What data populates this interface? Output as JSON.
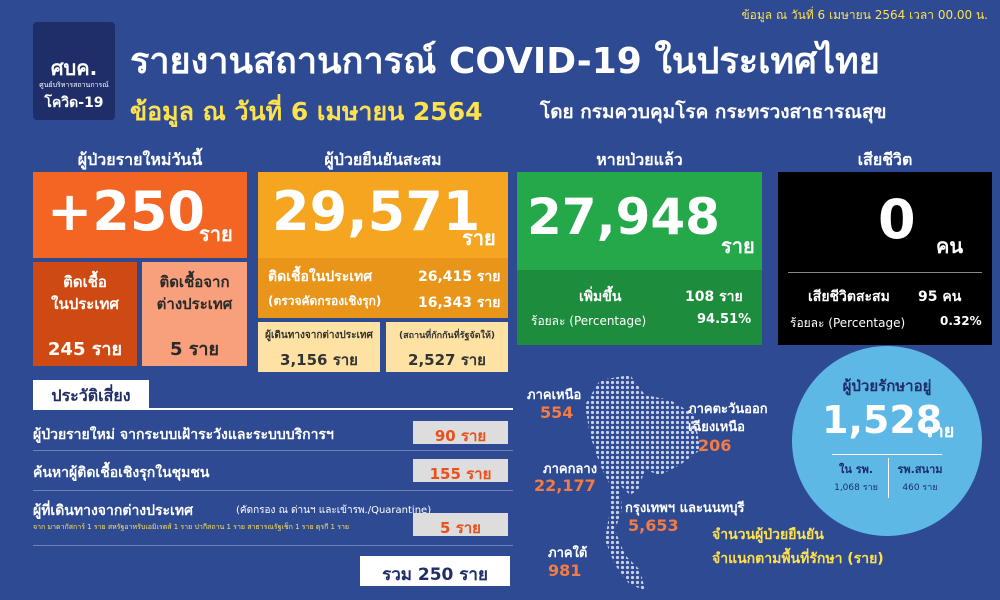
{
  "date_note": "ข้อมูล ณ วันที่ 6 เมษายน 2564 เวลา 00.00 น.",
  "logo": {
    "abbr": "ศบค.",
    "line1": "ศูนย์บริหารสถานการณ์",
    "line2": "โควิด-19"
  },
  "header": {
    "title": "รายงานสถานการณ์ COVID-19 ในประเทศไทย",
    "subtitle_date": "ข้อมูล ณ วันที่ 6 เมษายน 2564",
    "subtitle_source": "โดย กรมควบคุมโรค กระทรวงสาธารณสุข"
  },
  "new_cases": {
    "label": "ผู้ป่วยรายใหม่วันนี้",
    "value": "+250",
    "unit": "ราย",
    "domestic": {
      "line1": "ติดเชื้อ",
      "line2": "ในประเทศ",
      "value": "245 ราย"
    },
    "imported": {
      "line1": "ติดเชื้อจาก",
      "line2": "ต่างประเทศ",
      "value": "5 ราย"
    }
  },
  "cumulative": {
    "label": "ผู้ป่วยยืนยันสะสม",
    "value": "29,571",
    "unit": "ราย",
    "domestic": {
      "label": "ติดเชื้อในประเทศ",
      "value": "26,415 ราย"
    },
    "active_search": {
      "label": "(ตรวจคัดกรองเชิงรุก)",
      "value": "16,343 ราย"
    },
    "travelers": {
      "label": "ผู้เดินทางจากต่างประเทศ",
      "value": "3,156 ราย"
    },
    "state_quarantine": {
      "label": "(สถานที่กักกันที่รัฐจัดให้)",
      "value": "2,527 ราย"
    }
  },
  "recovered": {
    "label": "หายป่วยแล้ว",
    "value": "27,948",
    "unit": "ราย",
    "increase": {
      "label": "เพิ่มขึ้น",
      "value": "108 ราย"
    },
    "percentage": {
      "label": "ร้อยละ (Percentage)",
      "value": "94.51%"
    }
  },
  "deaths": {
    "label": "เสียชีวิต",
    "value": "0",
    "unit": "คน",
    "cumulative": {
      "label": "เสียชีวิตสะสม",
      "value": "95 คน"
    },
    "percentage": {
      "label": "ร้อยละ (Percentage)",
      "value": "0.32%"
    }
  },
  "risk_history": {
    "title": "ประวัติเสี่ยง",
    "rows": [
      {
        "label": "ผู้ป่วยรายใหม่ จากระบบเฝ้าระวังและระบบบริการฯ",
        "value": "90 ราย"
      },
      {
        "label": "ค้นหาผู้ติดเชื้อเชิงรุกในชุมชน",
        "value": "155 ราย"
      },
      {
        "label": "ผู้ที่เดินทางจากต่างประเทศ",
        "detail": "(คัดกรอง ณ ด่านฯ และเข้ารพ./Quarantine)",
        "note": "จาก มาดากัสการ์ 1 ราย สหรัฐอาหรับเอมิเรตส์ 1 ราย ปากีสถาน 1 ราย สาธารณรัฐเช็ก 1 ราย ตุรกี 1 ราย",
        "value": "5 ราย"
      }
    ],
    "total": "รวม 250 ราย"
  },
  "regions": {
    "north": {
      "label": "ภาคเหนือ",
      "value": "554"
    },
    "northeast": {
      "line1": "ภาคตะวันออก",
      "line2": "เฉียงเหนือ",
      "value": "206"
    },
    "central": {
      "label": "ภาคกลาง",
      "value": "22,177"
    },
    "bangkok": {
      "label": "กรุงเทพฯ และนนทบุรี",
      "value": "5,653"
    },
    "south": {
      "label": "ภาคใต้",
      "value": "981"
    },
    "caption1": "จำนวนผู้ป่วยยืนยัน",
    "caption2": "จำแนกตามพื้นที่รักษา (ราย)"
  },
  "in_treatment": {
    "label": "ผู้ป่วยรักษาอยู่",
    "value": "1,528",
    "unit": "ราย",
    "hospital": {
      "label": "ใน รพ.",
      "value": "1,068 ราย"
    },
    "field_hospital": {
      "label": "รพ.สนาม",
      "value": "460 ราย"
    }
  }
}
